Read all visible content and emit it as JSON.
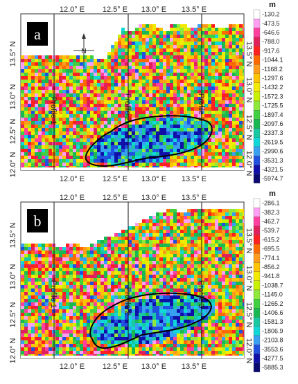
{
  "panels": [
    {
      "label": "a",
      "x_ticks": [
        "12.0° E",
        "12.5° E",
        "13.0° E",
        "13.5° E"
      ],
      "y_ticks": [
        "13.5° N",
        "13.0° N",
        "12.5° N",
        "12.0° N"
      ],
      "profiles": [
        "Profile 1",
        "Profile 2",
        "Profile 3"
      ],
      "north_arrow": "N",
      "colorbar": {
        "unit": "m",
        "labels": [
          "-130.2",
          "-473.5",
          "-646.6",
          "-788.0",
          "-917.6",
          "-1044.1",
          "-1168.2",
          "-1297.6",
          "-1432.2",
          "-1572.3",
          "-1725.5",
          "-1897.4",
          "-2097.6",
          "-2337.3",
          "-2619.5",
          "-2990.6",
          "-3531.3",
          "-4321.5",
          "-5974.7"
        ],
        "colors": [
          "#ffffff",
          "#ff9ff3",
          "#ff3fa0",
          "#e0205a",
          "#ff2020",
          "#ff6a00",
          "#ff9a1a",
          "#ffc400",
          "#f2ea00",
          "#c8f000",
          "#8fe83a",
          "#40d040",
          "#1ab850",
          "#18c8a0",
          "#10d8d8",
          "#38a0f0",
          "#2050e0",
          "#1010a8",
          "#0a0a70"
        ]
      }
    },
    {
      "label": "b",
      "x_ticks": [
        "12.0° E",
        "12.5° E",
        "13.0° E",
        "13.5° E"
      ],
      "y_ticks": [
        "13.5° N",
        "13.0° N",
        "12.5° N",
        "12.0° N"
      ],
      "profiles": [
        "Profile 1",
        "Profile 2",
        "Profile 3"
      ],
      "colorbar": {
        "unit": "m",
        "labels": [
          "-286.1",
          "-382.3",
          "-462.7",
          "-539.7",
          "-615.2",
          "-695.5",
          "-774.1",
          "-856.2",
          "-941.8",
          "-1038.7",
          "-1145.0",
          "-1265.2",
          "-1406.6",
          "-1581.3",
          "-1806.9",
          "-2103.8",
          "-3553.6",
          "-4277.5",
          "-5885.3"
        ],
        "colors": [
          "#ffffff",
          "#ff9ff3",
          "#ff3fa0",
          "#e0205a",
          "#ff2020",
          "#ff6a00",
          "#ff9a1a",
          "#ffc400",
          "#f2ea00",
          "#c8f000",
          "#8fe83a",
          "#40d040",
          "#1ab850",
          "#18c8a0",
          "#10d8d8",
          "#38a0f0",
          "#2050e0",
          "#1010a8",
          "#0a0a70"
        ]
      }
    }
  ]
}
